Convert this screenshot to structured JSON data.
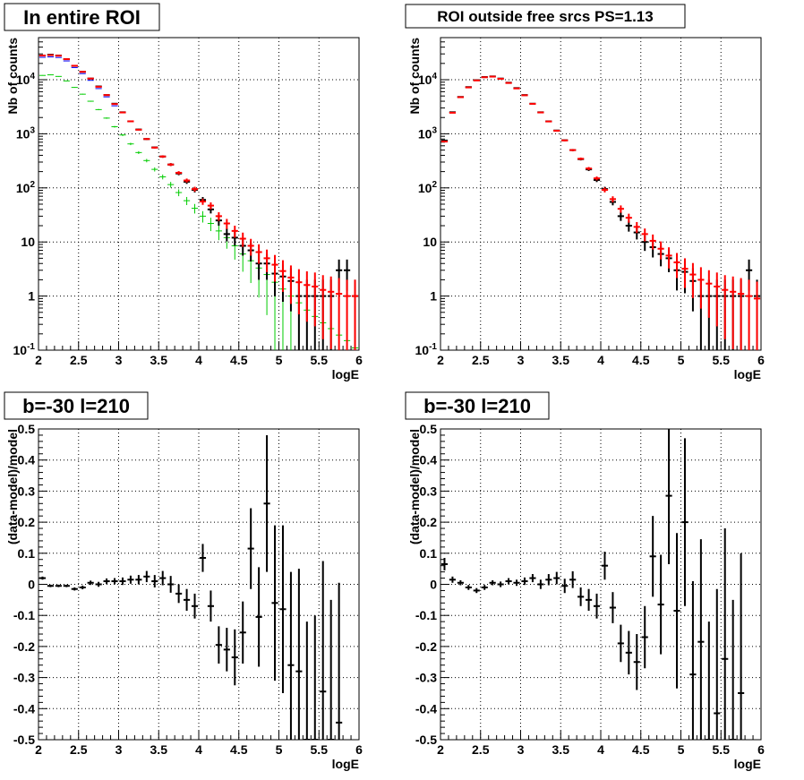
{
  "colors": {
    "data": "#000000",
    "model": "#ff0000",
    "component": "#00cc00",
    "total_blue": "#0000ff"
  },
  "chart_data": [
    {
      "type": "scatter",
      "title": "In entire ROI",
      "xlabel": "logE",
      "ylabel": "Nb of counts",
      "xlim": [
        2,
        6
      ],
      "ylim": [
        0.1,
        60000
      ],
      "yscale": "log",
      "grid": true,
      "x_ticks": [
        "2",
        "2.5",
        "3",
        "3.5",
        "4",
        "4.5",
        "5",
        "5.5",
        "6"
      ],
      "y_ticks": [
        "10^-1",
        "1",
        "10",
        "10^2",
        "10^3",
        "10^4"
      ],
      "series": [
        {
          "role": "data",
          "color": "#000000",
          "x": [
            2.05,
            2.15,
            2.25,
            2.35,
            2.45,
            2.55,
            2.65,
            2.75,
            2.85,
            2.95,
            3.05,
            3.15,
            3.25,
            3.35,
            3.45,
            3.55,
            3.65,
            3.75,
            3.85,
            3.95,
            4.05,
            4.15,
            4.25,
            4.35,
            4.45,
            4.55,
            4.65,
            4.75,
            4.85,
            4.95,
            5.05,
            5.15,
            5.25,
            5.35,
            5.45,
            5.55,
            5.65,
            5.75,
            5.85,
            5.95
          ],
          "y": [
            28000,
            29000,
            28000,
            24000,
            18000,
            14000,
            10500,
            7500,
            5200,
            3600,
            2500,
            1700,
            1200,
            800,
            560,
            380,
            270,
            185,
            130,
            92,
            60,
            40,
            25,
            14,
            12,
            8.5,
            7,
            4,
            4,
            2.6,
            2.3,
            1.9,
            1.0,
            1.0,
            1.0,
            1.0,
            1.0,
            3.0,
            3.0,
            1.0
          ]
        },
        {
          "role": "model",
          "color": "#ff0000",
          "x": [
            2.05,
            2.15,
            2.25,
            2.35,
            2.45,
            2.55,
            2.65,
            2.75,
            2.85,
            2.95,
            3.05,
            3.15,
            3.25,
            3.35,
            3.45,
            3.55,
            3.65,
            3.75,
            3.85,
            3.95,
            4.05,
            4.15,
            4.25,
            4.35,
            4.45,
            4.55,
            4.65,
            4.75,
            4.85,
            4.95,
            5.05,
            5.15,
            5.25,
            5.35,
            5.45,
            5.55,
            5.65,
            5.75,
            5.85,
            5.95
          ],
          "y": [
            28000,
            28500,
            27800,
            24000,
            18100,
            14000,
            10500,
            7400,
            5200,
            3550,
            2480,
            1700,
            1190,
            800,
            555,
            380,
            270,
            190,
            137,
            95,
            56,
            47,
            30,
            22,
            16,
            11.5,
            8.5,
            6.5,
            5,
            3.8,
            2.9,
            2.2,
            1.8,
            1.6,
            1.5,
            1.3,
            1.2,
            1.1,
            1.0,
            1.0
          ]
        },
        {
          "role": "component",
          "color": "#00cc00",
          "x": [
            2.05,
            2.15,
            2.25,
            2.35,
            2.45,
            2.55,
            2.65,
            2.75,
            2.85,
            2.95,
            3.05,
            3.15,
            3.25,
            3.35,
            3.45,
            3.55,
            3.65,
            3.75,
            3.85,
            3.95,
            4.05,
            4.15,
            4.25,
            4.35,
            4.45,
            4.55,
            4.65,
            4.75,
            4.85,
            4.95,
            5.05,
            5.15,
            5.25,
            5.35,
            5.45,
            5.55,
            5.65,
            5.75,
            5.85,
            5.95
          ],
          "y": [
            12000,
            12300,
            11500,
            9500,
            7200,
            5400,
            4000,
            2800,
            1950,
            1350,
            950,
            650,
            450,
            320,
            220,
            160,
            115,
            82,
            58,
            42,
            30,
            22,
            16,
            12,
            8.5,
            6,
            4.5,
            3.3,
            2.5,
            1.8,
            1.35,
            1.0,
            0.75,
            0.55,
            0.42,
            0.32,
            0.25,
            0.19,
            0.15,
            0.11
          ]
        }
      ]
    },
    {
      "type": "scatter",
      "title": "ROI outside free srcs PS=1.13",
      "xlabel": "logE",
      "ylabel": "Nb of counts",
      "xlim": [
        2,
        6
      ],
      "ylim": [
        0.1,
        60000
      ],
      "yscale": "log",
      "grid": true,
      "x_ticks": [
        "2",
        "2.5",
        "3",
        "3.5",
        "4",
        "4.5",
        "5",
        "5.5",
        "6"
      ],
      "y_ticks": [
        "10^-1",
        "1",
        "10",
        "10^2",
        "10^3",
        "10^4"
      ],
      "series": [
        {
          "role": "data",
          "color": "#000000",
          "x": [
            2.05,
            2.15,
            2.25,
            2.35,
            2.45,
            2.55,
            2.65,
            2.75,
            2.85,
            2.95,
            3.05,
            3.15,
            3.25,
            3.35,
            3.45,
            3.55,
            3.65,
            3.75,
            3.85,
            3.95,
            4.05,
            4.15,
            4.25,
            4.35,
            4.45,
            4.55,
            4.65,
            4.75,
            4.85,
            4.95,
            5.05,
            5.15,
            5.25,
            5.35,
            5.45,
            5.55,
            5.65,
            5.75,
            5.85,
            5.95
          ],
          "y": [
            750,
            2500,
            4800,
            7300,
            9800,
            11200,
            11500,
            10500,
            8800,
            7000,
            5200,
            3600,
            2500,
            1700,
            1150,
            760,
            500,
            340,
            220,
            140,
            95,
            55,
            30,
            20,
            15,
            10,
            8,
            6,
            5,
            3,
            2.8,
            1.9,
            1.0,
            1.0,
            1.0,
            1.0,
            1.0,
            1.0,
            3.0,
            1.0
          ]
        },
        {
          "role": "model",
          "color": "#ff0000",
          "x": [
            2.05,
            2.15,
            2.25,
            2.35,
            2.45,
            2.55,
            2.65,
            2.75,
            2.85,
            2.95,
            3.05,
            3.15,
            3.25,
            3.35,
            3.45,
            3.55,
            3.65,
            3.75,
            3.85,
            3.95,
            4.05,
            4.15,
            4.25,
            4.35,
            4.45,
            4.55,
            4.65,
            4.75,
            4.85,
            4.95,
            5.05,
            5.15,
            5.25,
            5.35,
            5.45,
            5.55,
            5.65,
            5.75,
            5.85,
            5.95
          ],
          "y": [
            720,
            2450,
            4750,
            7200,
            9700,
            11100,
            11400,
            10400,
            8700,
            6900,
            5150,
            3580,
            2480,
            1690,
            1140,
            755,
            500,
            345,
            228,
            150,
            92,
            62,
            41,
            28,
            19,
            14,
            10.5,
            7.5,
            5.6,
            4.2,
            3.2,
            2.5,
            2.0,
            1.7,
            1.5,
            1.3,
            1.2,
            1.1,
            1.0,
            0.9
          ]
        }
      ]
    },
    {
      "type": "scatter",
      "title": "b=-30 l=210",
      "xlabel": "logE",
      "ylabel": "(data-model)/model",
      "xlim": [
        2,
        6
      ],
      "ylim": [
        -0.5,
        0.5
      ],
      "grid": true,
      "x_ticks": [
        "2",
        "2.5",
        "3",
        "3.5",
        "4",
        "4.5",
        "5",
        "5.5",
        "6"
      ],
      "y_ticks": [
        "-0.5",
        "-0.4",
        "-0.3",
        "-0.2",
        "-0.1",
        "0",
        "0.1",
        "0.2",
        "0.3",
        "0.4",
        "0.5"
      ],
      "series": [
        {
          "role": "data",
          "color": "#000000",
          "x": [
            2.05,
            2.15,
            2.25,
            2.35,
            2.45,
            2.55,
            2.65,
            2.75,
            2.85,
            2.95,
            3.05,
            3.15,
            3.25,
            3.35,
            3.45,
            3.55,
            3.65,
            3.75,
            3.85,
            3.95,
            4.05,
            4.15,
            4.25,
            4.35,
            4.45,
            4.55,
            4.65,
            4.75,
            4.85,
            4.95,
            5.05,
            5.15,
            5.25,
            5.35,
            5.45,
            5.55,
            5.65,
            5.75
          ],
          "y": [
            0.02,
            -0.005,
            -0.005,
            -0.005,
            -0.015,
            -0.01,
            0.005,
            0.0,
            0.01,
            0.01,
            0.01,
            0.015,
            0.015,
            0.025,
            0.01,
            0.02,
            0.0,
            -0.03,
            -0.05,
            -0.07,
            0.085,
            -0.07,
            -0.195,
            -0.21,
            -0.235,
            -0.155,
            0.115,
            -0.105,
            0.26,
            -0.06,
            -0.08,
            -0.26,
            -0.28,
            -0.5,
            -0.5,
            -0.345,
            -0.5,
            -0.445
          ],
          "err": [
            0.005,
            0.004,
            0.004,
            0.004,
            0.005,
            0.006,
            0.007,
            0.008,
            0.009,
            0.01,
            0.012,
            0.013,
            0.015,
            0.018,
            0.02,
            0.023,
            0.027,
            0.03,
            0.035,
            0.04,
            0.045,
            0.05,
            0.06,
            0.07,
            0.09,
            0.1,
            0.13,
            0.16,
            0.22,
            0.25,
            0.27,
            0.3,
            0.33,
            0.38,
            0.4,
            0.42,
            0.45,
            0.45
          ]
        }
      ]
    },
    {
      "type": "scatter",
      "title": "b=-30 l=210",
      "xlabel": "logE",
      "ylabel": "(data-model)/model",
      "xlim": [
        2,
        6
      ],
      "ylim": [
        -0.5,
        0.5
      ],
      "grid": true,
      "x_ticks": [
        "2",
        "2.5",
        "3",
        "3.5",
        "4",
        "4.5",
        "5",
        "5.5",
        "6"
      ],
      "y_ticks": [
        "-0.5",
        "-0.4",
        "-0.3",
        "-0.2",
        "-0.1",
        "0",
        "0.1",
        "0.2",
        "0.3",
        "0.4",
        "0.5"
      ],
      "series": [
        {
          "role": "data",
          "color": "#000000",
          "x": [
            2.05,
            2.15,
            2.25,
            2.35,
            2.45,
            2.55,
            2.65,
            2.75,
            2.85,
            2.95,
            3.05,
            3.15,
            3.25,
            3.35,
            3.45,
            3.55,
            3.65,
            3.75,
            3.85,
            3.95,
            4.05,
            4.15,
            4.25,
            4.35,
            4.45,
            4.55,
            4.65,
            4.75,
            4.85,
            4.95,
            5.05,
            5.15,
            5.25,
            5.35,
            5.45,
            5.55,
            5.65,
            5.75
          ],
          "y": [
            0.065,
            0.015,
            0.005,
            -0.01,
            -0.02,
            -0.01,
            0.005,
            0.0,
            0.01,
            0.005,
            0.01,
            0.02,
            0.0,
            0.015,
            0.02,
            -0.005,
            0.015,
            -0.04,
            -0.05,
            -0.07,
            0.06,
            -0.075,
            -0.19,
            -0.22,
            -0.25,
            -0.17,
            0.09,
            -0.065,
            0.285,
            -0.085,
            0.2,
            -0.29,
            -0.185,
            -0.5,
            -0.415,
            -0.24,
            -0.5,
            -0.35
          ],
          "err": [
            0.02,
            0.01,
            0.008,
            0.008,
            0.008,
            0.008,
            0.008,
            0.009,
            0.01,
            0.01,
            0.012,
            0.013,
            0.015,
            0.018,
            0.02,
            0.023,
            0.027,
            0.03,
            0.035,
            0.04,
            0.045,
            0.05,
            0.06,
            0.07,
            0.09,
            0.1,
            0.13,
            0.16,
            0.22,
            0.25,
            0.27,
            0.3,
            0.33,
            0.38,
            0.4,
            0.42,
            0.45,
            0.45
          ]
        }
      ]
    }
  ]
}
